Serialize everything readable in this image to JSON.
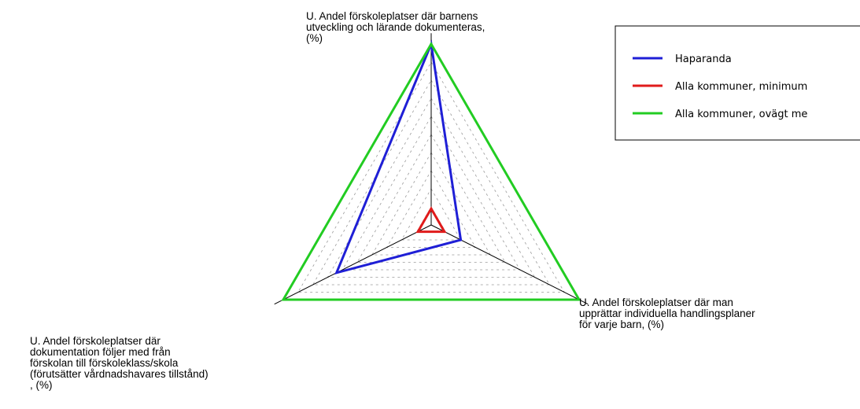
{
  "chart_data": {
    "type": "radar",
    "axes": [
      [
        "U. Andel förskoleplatser där barnens",
        "utveckling och lärande dokumenteras,",
        "(%)"
      ],
      [
        "U. Andel förskoleplatser där man",
        "upprättar individuella handlingsplaner",
        "för varje barn, (%)"
      ],
      [
        "U. Andel förskoleplatser där",
        "dokumentation följer med från",
        "förskolan till förskoleklass/skola",
        "(förutsätter vårdnadshavares tillstånd)",
        ", (%)"
      ]
    ],
    "range": [
      0,
      100
    ],
    "grid": true,
    "grid_levels": 10,
    "legend_position": "top-right",
    "series": [
      {
        "name": "Haparanda",
        "color": "#1f1fd6",
        "values": [
          100,
          20,
          64
        ]
      },
      {
        "name": "Alla kommuner, minimum",
        "color": "#e01b1b",
        "values": [
          9,
          9,
          9
        ]
      },
      {
        "name": "Alla kommuner, ovägt me",
        "color": "#22cc22",
        "values": [
          100,
          100,
          100
        ]
      }
    ]
  }
}
